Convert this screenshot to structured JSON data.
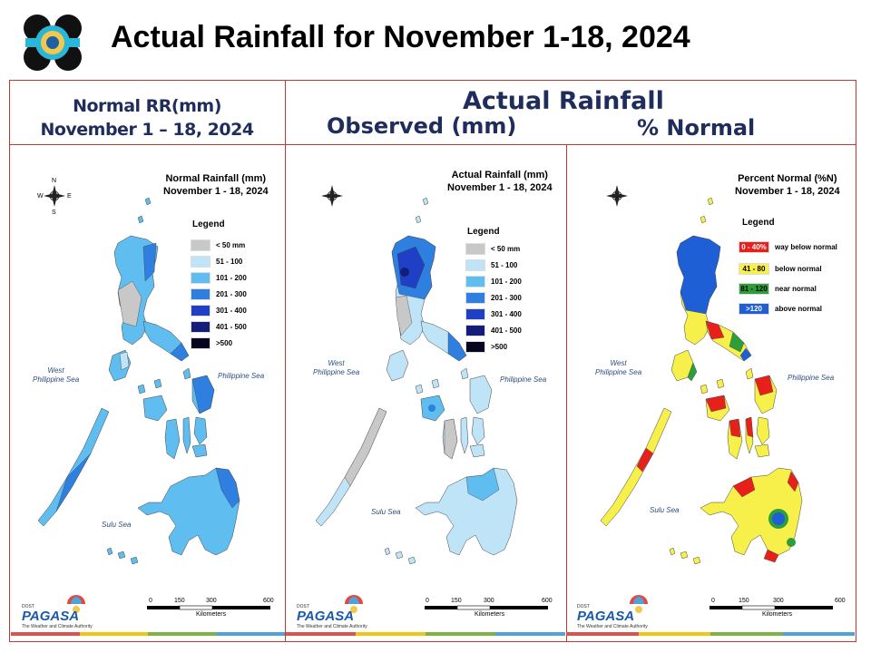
{
  "title": "Actual Rainfall for November 1-18, 2024",
  "headers": {
    "normal": [
      "Normal RR(mm)",
      "November 1 – 18, 2024"
    ],
    "actual": "Actual Rainfall",
    "observed": "Observed (mm)",
    "percent": "% Normal"
  },
  "colors": {
    "frame": "#c0392b",
    "header_text": "#1f2d5c",
    "sea_label": "#2b4d7e",
    "stripe": [
      "#d9534f",
      "#f0c419",
      "#7cb342",
      "#4fa3d9"
    ]
  },
  "panels": [
    {
      "id": "normal",
      "title": [
        "Normal Rainfall (mm)",
        "November 1 - 18, 2024"
      ],
      "legend_title": "Legend",
      "legend": [
        {
          "label": "< 50 mm",
          "color": "#c8c8c8"
        },
        {
          "label": "51 - 100",
          "color": "#bfe3f7"
        },
        {
          "label": "101 - 200",
          "color": "#5fbdf0"
        },
        {
          "label": "201 - 300",
          "color": "#2e7fe0"
        },
        {
          "label": "301 - 400",
          "color": "#1f3fc4"
        },
        {
          "label": "401 - 500",
          "color": "#141e7a"
        },
        {
          "label": ">500",
          "color": "#05051f"
        }
      ]
    },
    {
      "id": "observed",
      "title": [
        "Actual Rainfall (mm)",
        "November 1 - 18, 2024"
      ],
      "legend_title": "Legend",
      "legend": [
        {
          "label": "< 50 mm",
          "color": "#c8c8c8"
        },
        {
          "label": "51 - 100",
          "color": "#bfe3f7"
        },
        {
          "label": "101 - 200",
          "color": "#5fbdf0"
        },
        {
          "label": "201 - 300",
          "color": "#2e7fe0"
        },
        {
          "label": "301 - 400",
          "color": "#1f3fc4"
        },
        {
          "label": "401 - 500",
          "color": "#141e7a"
        },
        {
          "label": ">500",
          "color": "#05051f"
        }
      ]
    },
    {
      "id": "percent",
      "title": [
        "Percent Normal (%N)",
        "November 1 - 18, 2024"
      ],
      "legend_title": "Legend",
      "legend": [
        {
          "swatch": "0 - 40%",
          "label": "way below normal",
          "color": "#e8201c",
          "text_color": "#ffffff"
        },
        {
          "swatch": "41 - 80",
          "label": "below normal",
          "color": "#f7f04a",
          "text_color": "#000000"
        },
        {
          "swatch": "81 - 120",
          "label": "near normal",
          "color": "#2e9e3a",
          "text_color": "#000000"
        },
        {
          "swatch": ">120",
          "label": "above normal",
          "color": "#1e5fd6",
          "text_color": "#ffffff"
        }
      ]
    }
  ],
  "map_labels": {
    "compass": [
      "N",
      "W",
      "E",
      "S"
    ],
    "west_sea": [
      "West",
      "Philippine Sea"
    ],
    "philippine_sea": "Philippine Sea",
    "sulu_sea": "Sulu Sea",
    "scale_ticks": [
      "0",
      "150",
      "300",
      "600"
    ],
    "scale_unit": "Kilometers"
  },
  "branding": {
    "agency": "PAGASA",
    "dost": "DOST",
    "tagline": "The Weather and Climate Authority"
  }
}
